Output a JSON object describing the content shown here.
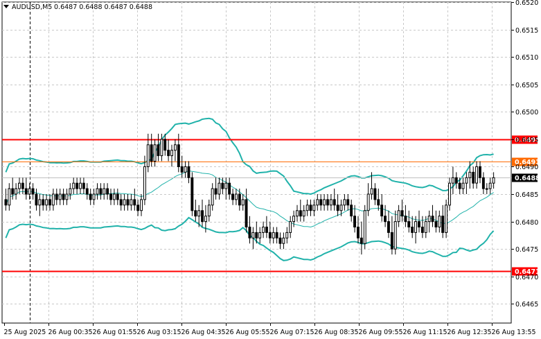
{
  "header": {
    "symbol": "AUDUSD,M5",
    "ohlc": "0.6487 0.6488 0.6487 0.6488"
  },
  "chart_data": {
    "type": "candlestick",
    "symbol": "AUDUSD",
    "timeframe": "M5",
    "y_ticks": [
      "0.6465",
      "0.6470",
      "0.6475",
      "0.6480",
      "0.6485",
      "0.6490",
      "0.6495",
      "0.6500",
      "0.6505",
      "0.6510",
      "0.6515",
      "0.6520"
    ],
    "ylim": [
      0.64615,
      0.652
    ],
    "x_ticks": [
      "25 Aug 2025",
      "26 Aug 00:35",
      "26 Aug 01:55",
      "26 Aug 03:15",
      "26 Aug 04:35",
      "26 Aug 05:55",
      "26 Aug 07:15",
      "26 Aug 08:35",
      "26 Aug 09:55",
      "26 Aug 11:15",
      "26 Aug 12:35",
      "26 Aug 13:55"
    ],
    "levels": [
      {
        "label": "0.6495",
        "value": 0.6495,
        "color": "#ff0000"
      },
      {
        "label": "0.6491",
        "value": 0.6491,
        "color": "#ff6a00"
      },
      {
        "label": "0.6471",
        "value": 0.6471,
        "color": "#ff0000"
      }
    ],
    "current_price": {
      "label": "0.6488",
      "value": 0.6488
    },
    "indicator": "Bollinger Bands",
    "indicator_color": "#20b2aa",
    "grid": true,
    "candles": [
      [
        0.6484,
        0.6486,
        0.6482,
        0.6483
      ],
      [
        0.6483,
        0.6487,
        0.6482,
        0.6486
      ],
      [
        0.6486,
        0.6488,
        0.6484,
        0.6485
      ],
      [
        0.6485,
        0.6487,
        0.6484,
        0.6486
      ],
      [
        0.6486,
        0.6488,
        0.6485,
        0.6487
      ],
      [
        0.6487,
        0.6488,
        0.6485,
        0.6486
      ],
      [
        0.6486,
        0.6488,
        0.6484,
        0.6485
      ],
      [
        0.6485,
        0.6487,
        0.6484,
        0.6486
      ],
      [
        0.6486,
        0.6487,
        0.6484,
        0.6485
      ],
      [
        0.6485,
        0.6486,
        0.6482,
        0.6483
      ],
      [
        0.6483,
        0.6485,
        0.6481,
        0.6484
      ],
      [
        0.6484,
        0.6485,
        0.6482,
        0.6483
      ],
      [
        0.6483,
        0.6485,
        0.6482,
        0.6484
      ],
      [
        0.6484,
        0.6485,
        0.6482,
        0.6483
      ],
      [
        0.6483,
        0.6486,
        0.6482,
        0.6485
      ],
      [
        0.6485,
        0.6486,
        0.6483,
        0.6484
      ],
      [
        0.6484,
        0.6486,
        0.6483,
        0.6485
      ],
      [
        0.6485,
        0.6486,
        0.6483,
        0.6484
      ],
      [
        0.6484,
        0.6486,
        0.6483,
        0.6485
      ],
      [
        0.6485,
        0.6487,
        0.6484,
        0.6486
      ],
      [
        0.6486,
        0.6488,
        0.6485,
        0.6487
      ],
      [
        0.6487,
        0.6488,
        0.6485,
        0.6486
      ],
      [
        0.6486,
        0.6488,
        0.6485,
        0.6487
      ],
      [
        0.6487,
        0.6488,
        0.6485,
        0.6486
      ],
      [
        0.6486,
        0.6487,
        0.6484,
        0.6485
      ],
      [
        0.6485,
        0.6486,
        0.6483,
        0.6484
      ],
      [
        0.6484,
        0.6486,
        0.6483,
        0.6485
      ],
      [
        0.6485,
        0.6487,
        0.6484,
        0.6486
      ],
      [
        0.6486,
        0.6487,
        0.6484,
        0.6485
      ],
      [
        0.6485,
        0.6487,
        0.6484,
        0.6486
      ],
      [
        0.6486,
        0.6487,
        0.6484,
        0.6485
      ],
      [
        0.6485,
        0.6486,
        0.6483,
        0.6484
      ],
      [
        0.6484,
        0.6486,
        0.6483,
        0.6485
      ],
      [
        0.6485,
        0.6486,
        0.6483,
        0.6484
      ],
      [
        0.6484,
        0.6485,
        0.6482,
        0.6483
      ],
      [
        0.6483,
        0.6485,
        0.6482,
        0.6484
      ],
      [
        0.6484,
        0.6485,
        0.6482,
        0.6483
      ],
      [
        0.6483,
        0.6485,
        0.6482,
        0.6484
      ],
      [
        0.6484,
        0.6486,
        0.6482,
        0.6483
      ],
      [
        0.6483,
        0.6484,
        0.6481,
        0.6482
      ],
      [
        0.6482,
        0.6485,
        0.6481,
        0.6484
      ],
      [
        0.6484,
        0.6492,
        0.6483,
        0.649
      ],
      [
        0.649,
        0.6496,
        0.6489,
        0.6494
      ],
      [
        0.6494,
        0.6496,
        0.649,
        0.6491
      ],
      [
        0.6491,
        0.6495,
        0.649,
        0.6494
      ],
      [
        0.6494,
        0.6496,
        0.6491,
        0.6492
      ],
      [
        0.6492,
        0.6496,
        0.6491,
        0.6495
      ],
      [
        0.6495,
        0.6496,
        0.6492,
        0.6493
      ],
      [
        0.6493,
        0.6495,
        0.6491,
        0.6492
      ],
      [
        0.6492,
        0.6494,
        0.649,
        0.6493
      ],
      [
        0.6493,
        0.6495,
        0.6491,
        0.6494
      ],
      [
        0.6494,
        0.6496,
        0.6489,
        0.649
      ],
      [
        0.649,
        0.6492,
        0.6488,
        0.6489
      ],
      [
        0.6489,
        0.6491,
        0.6488,
        0.649
      ],
      [
        0.649,
        0.6491,
        0.6487,
        0.6488
      ],
      [
        0.6488,
        0.6489,
        0.6481,
        0.6482
      ],
      [
        0.6482,
        0.6484,
        0.648,
        0.6481
      ],
      [
        0.6481,
        0.6483,
        0.6479,
        0.6482
      ],
      [
        0.6482,
        0.6484,
        0.6479,
        0.648
      ],
      [
        0.648,
        0.6483,
        0.6478,
        0.6481
      ],
      [
        0.6481,
        0.6484,
        0.648,
        0.6483
      ],
      [
        0.6483,
        0.6487,
        0.6482,
        0.6486
      ],
      [
        0.6486,
        0.6488,
        0.6484,
        0.6485
      ],
      [
        0.6485,
        0.6488,
        0.6484,
        0.6487
      ],
      [
        0.6487,
        0.6488,
        0.6485,
        0.6486
      ],
      [
        0.6486,
        0.6488,
        0.6484,
        0.6487
      ],
      [
        0.6487,
        0.6488,
        0.6484,
        0.6485
      ],
      [
        0.6485,
        0.6486,
        0.6483,
        0.6484
      ],
      [
        0.6484,
        0.6486,
        0.6483,
        0.6485
      ],
      [
        0.6485,
        0.6486,
        0.6482,
        0.6483
      ],
      [
        0.6483,
        0.6485,
        0.6482,
        0.6484
      ],
      [
        0.6484,
        0.6486,
        0.6478,
        0.6479
      ],
      [
        0.6479,
        0.6481,
        0.6476,
        0.6477
      ],
      [
        0.6477,
        0.6479,
        0.6475,
        0.6478
      ],
      [
        0.6478,
        0.648,
        0.6476,
        0.6477
      ],
      [
        0.6477,
        0.6479,
        0.6476,
        0.6478
      ],
      [
        0.6478,
        0.648,
        0.6477,
        0.6479
      ],
      [
        0.6479,
        0.6481,
        0.6477,
        0.6478
      ],
      [
        0.6478,
        0.648,
        0.6476,
        0.6477
      ],
      [
        0.6477,
        0.6479,
        0.6476,
        0.6478
      ],
      [
        0.6478,
        0.6479,
        0.6476,
        0.6477
      ],
      [
        0.6477,
        0.6478,
        0.6475,
        0.6476
      ],
      [
        0.6476,
        0.6478,
        0.6475,
        0.6477
      ],
      [
        0.6477,
        0.6479,
        0.6476,
        0.6478
      ],
      [
        0.6478,
        0.6481,
        0.6477,
        0.648
      ],
      [
        0.648,
        0.6482,
        0.6479,
        0.6481
      ],
      [
        0.6481,
        0.6483,
        0.648,
        0.6482
      ],
      [
        0.6482,
        0.6484,
        0.648,
        0.6481
      ],
      [
        0.6481,
        0.6483,
        0.648,
        0.6482
      ],
      [
        0.6482,
        0.6484,
        0.6481,
        0.6483
      ],
      [
        0.6483,
        0.6484,
        0.6481,
        0.6482
      ],
      [
        0.6482,
        0.6484,
        0.6481,
        0.6483
      ],
      [
        0.6483,
        0.6485,
        0.6482,
        0.6484
      ],
      [
        0.6484,
        0.6485,
        0.6482,
        0.6483
      ],
      [
        0.6483,
        0.6485,
        0.6482,
        0.6484
      ],
      [
        0.6484,
        0.6485,
        0.6482,
        0.6483
      ],
      [
        0.6483,
        0.6485,
        0.6482,
        0.6484
      ],
      [
        0.6484,
        0.6486,
        0.6482,
        0.6483
      ],
      [
        0.6483,
        0.6485,
        0.6481,
        0.6482
      ],
      [
        0.6482,
        0.6484,
        0.6481,
        0.6483
      ],
      [
        0.6483,
        0.6485,
        0.6482,
        0.6484
      ],
      [
        0.6484,
        0.6485,
        0.6482,
        0.6483
      ],
      [
        0.6483,
        0.6484,
        0.648,
        0.6481
      ],
      [
        0.6481,
        0.6483,
        0.6478,
        0.6479
      ],
      [
        0.6479,
        0.6481,
        0.6476,
        0.6477
      ],
      [
        0.6477,
        0.648,
        0.6474,
        0.6476
      ],
      [
        0.6476,
        0.6483,
        0.6475,
        0.6482
      ],
      [
        0.6482,
        0.6487,
        0.6481,
        0.6485
      ],
      [
        0.6485,
        0.6489,
        0.6484,
        0.6486
      ],
      [
        0.6486,
        0.6487,
        0.6483,
        0.6484
      ],
      [
        0.6484,
        0.6486,
        0.6482,
        0.6483
      ],
      [
        0.6483,
        0.6485,
        0.648,
        0.6481
      ],
      [
        0.6481,
        0.6483,
        0.6479,
        0.648
      ],
      [
        0.648,
        0.6482,
        0.6477,
        0.6478
      ],
      [
        0.6478,
        0.6481,
        0.6474,
        0.6475
      ],
      [
        0.6475,
        0.6482,
        0.6474,
        0.648
      ],
      [
        0.648,
        0.6483,
        0.6479,
        0.6482
      ],
      [
        0.6482,
        0.6484,
        0.648,
        0.6481
      ],
      [
        0.6481,
        0.6483,
        0.6479,
        0.648
      ],
      [
        0.648,
        0.6482,
        0.6478,
        0.6479
      ],
      [
        0.6479,
        0.6481,
        0.6477,
        0.6478
      ],
      [
        0.6478,
        0.6481,
        0.6476,
        0.648
      ],
      [
        0.648,
        0.6482,
        0.6478,
        0.6479
      ],
      [
        0.6479,
        0.6481,
        0.6477,
        0.6478
      ],
      [
        0.6478,
        0.6481,
        0.6477,
        0.648
      ],
      [
        0.648,
        0.6482,
        0.6478,
        0.6481
      ],
      [
        0.6481,
        0.6483,
        0.6479,
        0.648
      ],
      [
        0.648,
        0.6482,
        0.6478,
        0.6479
      ],
      [
        0.6479,
        0.6482,
        0.6478,
        0.6481
      ],
      [
        0.6481,
        0.6483,
        0.6477,
        0.6478
      ],
      [
        0.6478,
        0.6484,
        0.6477,
        0.6483
      ],
      [
        0.6483,
        0.6488,
        0.6482,
        0.6487
      ],
      [
        0.6487,
        0.649,
        0.6485,
        0.6488
      ],
      [
        0.6488,
        0.6489,
        0.6486,
        0.6487
      ],
      [
        0.6487,
        0.6488,
        0.6485,
        0.6486
      ],
      [
        0.6486,
        0.6488,
        0.6485,
        0.6487
      ],
      [
        0.6487,
        0.6489,
        0.6485,
        0.6488
      ],
      [
        0.6488,
        0.6491,
        0.6486,
        0.6489
      ],
      [
        0.6489,
        0.649,
        0.6486,
        0.6487
      ],
      [
        0.6487,
        0.6491,
        0.6486,
        0.649
      ],
      [
        0.649,
        0.6491,
        0.6487,
        0.6488
      ],
      [
        0.6488,
        0.6489,
        0.6485,
        0.6486
      ],
      [
        0.6486,
        0.6487,
        0.6485,
        0.6486
      ],
      [
        0.6486,
        0.6488,
        0.6485,
        0.6487
      ],
      [
        0.6487,
        0.6489,
        0.6486,
        0.6488
      ]
    ]
  }
}
